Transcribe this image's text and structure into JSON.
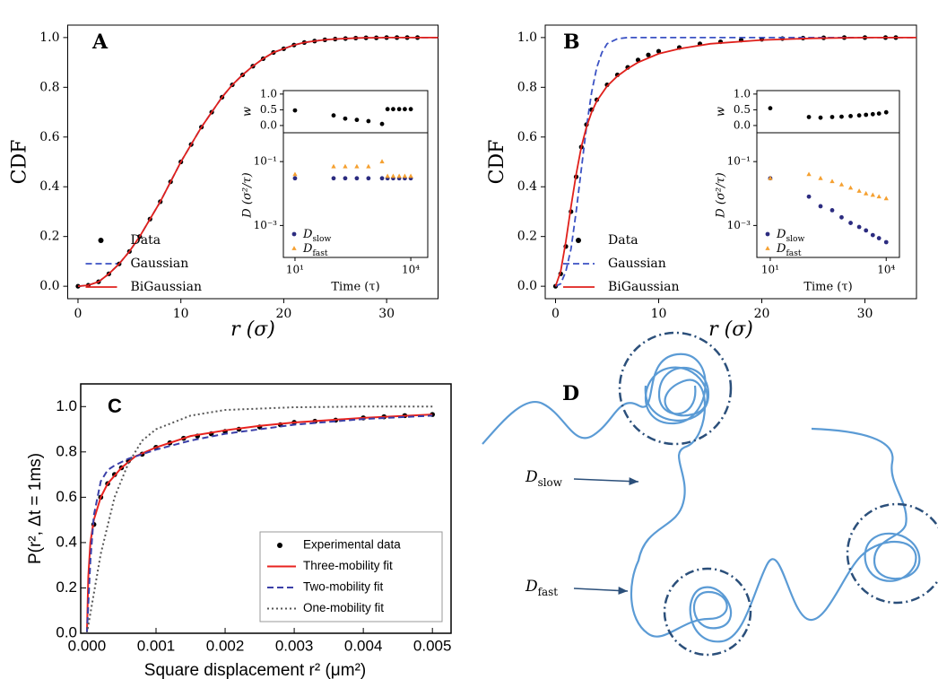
{
  "chart_data": [
    {
      "type": "line",
      "panel_label": "A",
      "xlabel": "r (σ)",
      "ylabel": "CDF",
      "xlim": [
        -1,
        35
      ],
      "ylim": [
        -0.05,
        1.05
      ],
      "xticks": [
        0,
        10,
        20,
        30
      ],
      "yticks": [
        {
          "value": 0,
          "label": "0.0"
        },
        {
          "value": 0.2,
          "label": "0.2"
        },
        {
          "value": 0.4,
          "label": "0.4"
        },
        {
          "value": 0.6,
          "label": "0.6"
        },
        {
          "value": 0.8,
          "label": "0.8"
        },
        {
          "value": 1,
          "label": "1.0"
        }
      ],
      "legend_position": "lower left",
      "series": [
        {
          "name": "Data",
          "color": "#000000",
          "style": "markers",
          "marker": "circle",
          "x": [
            0,
            1,
            2,
            3,
            4,
            5,
            6,
            7,
            8,
            9,
            10,
            11,
            12,
            13,
            14,
            15,
            16,
            17,
            18,
            19,
            20,
            21,
            22,
            23,
            24,
            25,
            26,
            27,
            28,
            29,
            30,
            31,
            32,
            33
          ],
          "values": [
            0,
            0.004,
            0.018,
            0.05,
            0.09,
            0.14,
            0.2,
            0.27,
            0.34,
            0.42,
            0.5,
            0.57,
            0.64,
            0.7,
            0.76,
            0.81,
            0.85,
            0.885,
            0.915,
            0.94,
            0.955,
            0.97,
            0.98,
            0.986,
            0.991,
            0.994,
            0.996,
            0.998,
            0.999,
            0.999,
            1,
            1,
            1,
            1
          ]
        },
        {
          "name": "Gaussian",
          "color": "#3b52c4",
          "style": "dashed",
          "x": [
            0,
            1,
            2,
            3,
            4,
            5,
            6,
            7,
            8,
            9,
            10,
            11,
            12,
            13,
            14,
            15,
            16,
            17,
            18,
            19,
            20,
            21,
            22,
            23,
            24,
            25,
            26,
            27,
            28,
            29,
            30,
            31,
            32,
            33,
            34,
            35
          ],
          "values": [
            0,
            0.004,
            0.018,
            0.05,
            0.09,
            0.14,
            0.2,
            0.27,
            0.34,
            0.42,
            0.5,
            0.57,
            0.64,
            0.7,
            0.76,
            0.81,
            0.85,
            0.885,
            0.915,
            0.94,
            0.955,
            0.97,
            0.98,
            0.986,
            0.991,
            0.994,
            0.996,
            0.998,
            0.999,
            0.999,
            1,
            1,
            1,
            1,
            1,
            1
          ]
        },
        {
          "name": "BiGaussian",
          "color": "#e0201b",
          "style": "solid",
          "x": [
            0,
            1,
            2,
            3,
            4,
            5,
            6,
            7,
            8,
            9,
            10,
            11,
            12,
            13,
            14,
            15,
            16,
            17,
            18,
            19,
            20,
            21,
            22,
            23,
            24,
            25,
            26,
            27,
            28,
            29,
            30,
            31,
            32,
            33,
            34,
            35
          ],
          "values": [
            0,
            0.004,
            0.018,
            0.05,
            0.09,
            0.14,
            0.2,
            0.27,
            0.34,
            0.42,
            0.5,
            0.57,
            0.64,
            0.7,
            0.76,
            0.81,
            0.85,
            0.885,
            0.915,
            0.94,
            0.955,
            0.97,
            0.98,
            0.986,
            0.991,
            0.994,
            0.996,
            0.998,
            0.999,
            0.999,
            1,
            1,
            1,
            1,
            1,
            1
          ]
        }
      ],
      "inset": {
        "type": "scatter",
        "xlabel": "Time (τ)",
        "xscale": "log",
        "xlim": [
          5,
          27500
        ],
        "xticks": [
          {
            "value": 10,
            "label": "10¹"
          },
          {
            "value": 10000,
            "label": "10⁴"
          }
        ],
        "x": [
          10,
          100,
          200,
          400,
          800,
          1800,
          2500,
          3500,
          5000,
          7000,
          10000
        ],
        "panels": [
          {
            "ylabel": "w",
            "ylim": [
              -0.23,
              1.11
            ],
            "yticks": [
              {
                "value": 0,
                "label": "0.0"
              },
              {
                "value": 0.5,
                "label": "0.5"
              },
              {
                "value": 1,
                "label": "1.0"
              }
            ],
            "series": [
              {
                "color": "#000000",
                "marker": "circle",
                "values": [
                  0.48,
                  0.32,
                  0.22,
                  0.18,
                  0.14,
                  0.05,
                  0.52,
                  0.52,
                  0.52,
                  0.52,
                  0.52
                ]
              }
            ]
          },
          {
            "ylabel": "D (σ²/τ)",
            "yscale": "log",
            "ylim": [
              0.0001,
              0.8
            ],
            "yticks": [
              {
                "value": 0.001,
                "label": "10⁻³"
              },
              {
                "value": 0.1,
                "label": "10⁻¹"
              }
            ],
            "legend_position": "lower left",
            "series": [
              {
                "name": "Dslow",
                "color": "#2c2c80",
                "marker": "circle",
                "values": [
                  0.03,
                  0.03,
                  0.03,
                  0.03,
                  0.03,
                  0.03,
                  0.03,
                  0.03,
                  0.03,
                  0.03,
                  0.03
                ]
              },
              {
                "name": "Dfast",
                "color": "#f5a030",
                "marker": "triangle",
                "values": [
                  0.04,
                  0.07,
                  0.07,
                  0.07,
                  0.07,
                  0.1,
                  0.035,
                  0.035,
                  0.035,
                  0.035,
                  0.035
                ]
              }
            ]
          }
        ]
      }
    },
    {
      "type": "line",
      "panel_label": "B",
      "xlabel": "r (σ)",
      "ylabel": "CDF",
      "xlim": [
        -1,
        35
      ],
      "ylim": [
        -0.05,
        1.05
      ],
      "xticks": [
        0,
        10,
        20,
        30
      ],
      "yticks": [
        {
          "value": 0,
          "label": "0.0"
        },
        {
          "value": 0.2,
          "label": "0.2"
        },
        {
          "value": 0.4,
          "label": "0.4"
        },
        {
          "value": 0.6,
          "label": "0.6"
        },
        {
          "value": 0.8,
          "label": "0.8"
        },
        {
          "value": 1,
          "label": "1.0"
        }
      ],
      "legend_position": "lower left",
      "series": [
        {
          "name": "Data",
          "color": "#000000",
          "style": "markers",
          "marker": "circle",
          "x": [
            0,
            0.5,
            1,
            1.5,
            2,
            2.5,
            3,
            3.5,
            4,
            5,
            6,
            7,
            8,
            9,
            10,
            12,
            14,
            16,
            18,
            20,
            22,
            24,
            26,
            28,
            30,
            32,
            33
          ],
          "values": [
            0,
            0.05,
            0.16,
            0.3,
            0.44,
            0.56,
            0.65,
            0.71,
            0.75,
            0.81,
            0.85,
            0.88,
            0.91,
            0.93,
            0.945,
            0.96,
            0.975,
            0.983,
            0.99,
            0.993,
            0.996,
            0.998,
            0.999,
            1,
            1,
            1,
            1
          ]
        },
        {
          "name": "Gaussian",
          "color": "#3b52c4",
          "style": "dashed",
          "x": [
            0,
            0.5,
            1,
            1.5,
            2,
            2.5,
            3,
            3.5,
            4,
            4.5,
            5,
            6,
            7,
            10,
            35
          ],
          "values": [
            0,
            0.01,
            0.06,
            0.15,
            0.3,
            0.47,
            0.64,
            0.78,
            0.88,
            0.94,
            0.975,
            0.995,
            1,
            1,
            1
          ]
        },
        {
          "name": "BiGaussian",
          "color": "#e0201b",
          "style": "solid",
          "x": [
            0,
            0.5,
            1,
            1.5,
            2,
            2.5,
            3,
            3.5,
            4,
            5,
            6,
            7,
            8,
            10,
            12,
            15,
            20,
            25,
            30,
            35
          ],
          "values": [
            0,
            0.06,
            0.18,
            0.32,
            0.45,
            0.56,
            0.64,
            0.7,
            0.745,
            0.805,
            0.845,
            0.875,
            0.9,
            0.935,
            0.955,
            0.975,
            0.99,
            0.997,
            1,
            1
          ]
        }
      ],
      "inset": {
        "type": "scatter",
        "xlabel": "Time (τ)",
        "xscale": "log",
        "xlim": [
          4.5,
          22000
        ],
        "xticks": [
          {
            "value": 10,
            "label": "10¹"
          },
          {
            "value": 10000,
            "label": "10⁴"
          }
        ],
        "x": [
          10,
          100,
          200,
          400,
          700,
          1200,
          2000,
          3000,
          4500,
          6500,
          10000
        ],
        "panels": [
          {
            "ylabel": "w",
            "ylim": [
              -0.23,
              1.11
            ],
            "yticks": [
              {
                "value": 0,
                "label": "0.0"
              },
              {
                "value": 0.5,
                "label": "0.5"
              },
              {
                "value": 1,
                "label": "1.0"
              }
            ],
            "series": [
              {
                "color": "#000000",
                "marker": "circle",
                "values": [
                  0.55,
                  0.27,
                  0.25,
                  0.27,
                  0.28,
                  0.3,
                  0.32,
                  0.34,
                  0.36,
                  0.38,
                  0.42
                ]
              }
            ]
          },
          {
            "ylabel": "D (σ²/τ)",
            "yscale": "log",
            "ylim": [
              0.0001,
              0.8
            ],
            "yticks": [
              {
                "value": 0.001,
                "label": "10⁻³"
              },
              {
                "value": 0.1,
                "label": "10⁻¹"
              }
            ],
            "legend_position": "lower left",
            "series": [
              {
                "name": "Dslow",
                "color": "#2c2c80",
                "marker": "circle",
                "values": [
                  0.03,
                  0.008,
                  0.004,
                  0.003,
                  0.0018,
                  0.0012,
                  0.0009,
                  0.0007,
                  0.0005,
                  0.0004,
                  0.0003
                ]
              },
              {
                "name": "Dfast",
                "color": "#f5a030",
                "marker": "triangle",
                "values": [
                  0.03,
                  0.04,
                  0.03,
                  0.024,
                  0.019,
                  0.015,
                  0.012,
                  0.01,
                  0.009,
                  0.008,
                  0.007
                ]
              }
            ]
          }
        ]
      }
    },
    {
      "type": "line",
      "panel_label": "C",
      "xlabel": "Square displacement r² (μm²)",
      "ylabel": "P(r², Δt = 1ms)",
      "xlim": [
        -9e-05,
        0.00527
      ],
      "ylim": [
        0,
        1.1
      ],
      "xticks": [
        {
          "value": 0,
          "label": "0.000"
        },
        {
          "value": 0.001,
          "label": "0.001"
        },
        {
          "value": 0.002,
          "label": "0.002"
        },
        {
          "value": 0.003,
          "label": "0.003"
        },
        {
          "value": 0.004,
          "label": "0.004"
        },
        {
          "value": 0.005,
          "label": "0.005"
        }
      ],
      "yticks": [
        {
          "value": 0,
          "label": "0.0"
        },
        {
          "value": 0.2,
          "label": "0.2"
        },
        {
          "value": 0.4,
          "label": "0.4"
        },
        {
          "value": 0.6,
          "label": "0.6"
        },
        {
          "value": 0.8,
          "label": "0.8"
        },
        {
          "value": 1,
          "label": "1.0"
        }
      ],
      "legend_position": "lower right",
      "series": [
        {
          "name": "Experimental data",
          "color": "#000000",
          "style": "markers",
          "marker": "circle",
          "x": [
            0.0001,
            0.0002,
            0.0003,
            0.0004,
            0.0005,
            0.0006,
            0.0008,
            0.001,
            0.0012,
            0.0014,
            0.0016,
            0.0018,
            0.002,
            0.0022,
            0.0025,
            0.0028,
            0.003,
            0.0033,
            0.0036,
            0.004,
            0.0043,
            0.0046,
            0.005
          ],
          "values": [
            0.48,
            0.6,
            0.66,
            0.7,
            0.73,
            0.76,
            0.79,
            0.82,
            0.84,
            0.86,
            0.87,
            0.88,
            0.89,
            0.9,
            0.91,
            0.92,
            0.93,
            0.935,
            0.94,
            0.95,
            0.955,
            0.96,
            0.965
          ]
        },
        {
          "name": "Three-mobility fit",
          "color": "#e8231f",
          "style": "solid",
          "x": [
            0,
            2e-05,
            5e-05,
            0.0001,
            0.0002,
            0.0003,
            0.0005,
            0.0007,
            0.001,
            0.0015,
            0.002,
            0.0025,
            0.003,
            0.004,
            0.005
          ],
          "values": [
            0,
            0.25,
            0.4,
            0.5,
            0.6,
            0.66,
            0.73,
            0.78,
            0.82,
            0.87,
            0.895,
            0.915,
            0.93,
            0.95,
            0.965
          ]
        },
        {
          "name": "Two-mobility fit",
          "color": "#3a3fa8",
          "style": "dashed",
          "x": [
            0,
            5e-05,
            0.0001,
            0.0002,
            0.0003,
            0.0004,
            0.0006,
            0.0008,
            0.001,
            0.0015,
            0.002,
            0.0025,
            0.003,
            0.004,
            0.005
          ],
          "values": [
            0,
            0.32,
            0.52,
            0.67,
            0.72,
            0.74,
            0.77,
            0.79,
            0.81,
            0.85,
            0.88,
            0.9,
            0.92,
            0.945,
            0.96
          ]
        },
        {
          "name": "One-mobility fit",
          "color": "#555555",
          "style": "dotted",
          "x": [
            0,
            0.0002,
            0.0004,
            0.0006,
            0.0008,
            0.001,
            0.0015,
            0.002,
            0.003,
            0.004,
            0.005
          ],
          "values": [
            0,
            0.35,
            0.6,
            0.75,
            0.85,
            0.9,
            0.96,
            0.985,
            0.997,
            1,
            1
          ]
        }
      ]
    }
  ],
  "diagram": {
    "panel_label": "D",
    "labels": [
      "Dslow",
      "Dfast"
    ]
  }
}
